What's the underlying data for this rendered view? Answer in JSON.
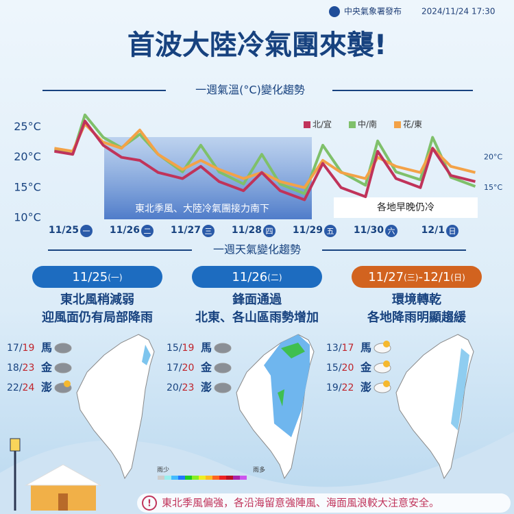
{
  "header": {
    "publisher": "中央氣象署發布",
    "timestamp": "2024/11/24 17:30",
    "title": "首波大陸冷氣團來襲!"
  },
  "chart_data": {
    "type": "line",
    "title": "一週氣溫(°C)變化趨勢",
    "x": [
      -0.4,
      -0.1,
      0.1,
      0.4,
      0.7,
      1.0,
      1.3,
      1.7,
      2.0,
      2.3,
      2.7,
      3.0,
      3.3,
      3.7,
      4.0,
      4.3,
      4.7,
      4.9,
      5.2,
      5.6,
      5.8,
      6.1,
      6.5
    ],
    "series": [
      {
        "name": "北/宜",
        "color": "#c0335a",
        "values": [
          21,
          20.5,
          26,
          22,
          20,
          19.5,
          17.5,
          16.5,
          18.5,
          16,
          14.5,
          17.5,
          14.5,
          13,
          19,
          15,
          13.5,
          21,
          16.5,
          15,
          21.5,
          17,
          16
        ]
      },
      {
        "name": "中/南",
        "color": "#7fc06a",
        "values": [
          21.2,
          20.5,
          27,
          23.3,
          21.6,
          23.8,
          20.5,
          17.6,
          22,
          17.6,
          15.6,
          20.5,
          15.6,
          14,
          22,
          17.6,
          15.4,
          22.7,
          17.6,
          16.3,
          23.3,
          16.7,
          15.2
        ]
      },
      {
        "name": "花/東",
        "color": "#f3a247",
        "values": [
          21.5,
          21,
          25.5,
          22.5,
          21.5,
          24.5,
          20.5,
          18,
          19.5,
          18,
          16.5,
          17.5,
          16,
          15,
          19.5,
          17.5,
          16.5,
          20,
          18.5,
          17.5,
          21.5,
          18.5,
          17.5
        ]
      }
    ],
    "xlim": [
      -0.4,
      6.5
    ],
    "xticks": [
      {
        "value": 0,
        "label": "11/25"
      },
      {
        "value": 1,
        "label": "11/26"
      },
      {
        "value": 2,
        "label": "11/27"
      },
      {
        "value": 3,
        "label": "11/28"
      },
      {
        "value": 4,
        "label": "11/29"
      },
      {
        "value": 5,
        "label": "11/30"
      },
      {
        "value": 6,
        "label": "12/1"
      }
    ],
    "weekday_labels": [
      "一",
      "二",
      "三",
      "四",
      "五",
      "六",
      "日"
    ],
    "ylim": [
      10,
      27
    ],
    "yticks": [
      {
        "value": 10,
        "label": "10°C"
      },
      {
        "value": 15,
        "label": "15°C"
      },
      {
        "value": 20,
        "label": "20°C"
      },
      {
        "value": 25,
        "label": "25°C"
      }
    ],
    "right_labels": [
      {
        "value": 20,
        "label": "20°C"
      },
      {
        "value": 15,
        "label": "15°C"
      }
    ],
    "annotations": [
      "東北季風、大陸冷氣團接力南下",
      "各地早晚仍冷"
    ]
  },
  "weekly": {
    "title": "一週天氣變化趨勢",
    "panels": [
      {
        "date": [
          "11/25",
          "(一)"
        ],
        "lines": [
          "東北風稍減弱",
          "迎風面仍有局部降雨"
        ],
        "islands": [
          {
            "low": 17,
            "high": 19,
            "name": "馬"
          },
          {
            "low": 18,
            "high": 23,
            "name": "金"
          },
          {
            "low": 22,
            "high": 24,
            "name": "澎"
          }
        ]
      },
      {
        "date": [
          "11/26",
          "(二)"
        ],
        "lines": [
          "鋒面通過",
          "北東、各山區雨勢增加"
        ],
        "islands": [
          {
            "low": 15,
            "high": 19,
            "name": "馬"
          },
          {
            "low": 17,
            "high": 20,
            "name": "金"
          },
          {
            "low": 20,
            "high": 23,
            "name": "澎"
          }
        ]
      },
      {
        "date": [
          "11/27",
          "(三)",
          "-12/1",
          "(日)"
        ],
        "lines": [
          "環境轉乾",
          "各地降雨明顯趨緩"
        ],
        "islands": [
          {
            "low": 13,
            "high": 17,
            "name": "馬"
          },
          {
            "low": 15,
            "high": 20,
            "name": "金"
          },
          {
            "low": 19,
            "high": 22,
            "name": "澎"
          }
        ]
      }
    ],
    "rain_legend": [
      "雨少",
      "雨多"
    ]
  },
  "footer": "東北季風偏強，各沿海留意強陣風、海面風浪較大注意安全。"
}
